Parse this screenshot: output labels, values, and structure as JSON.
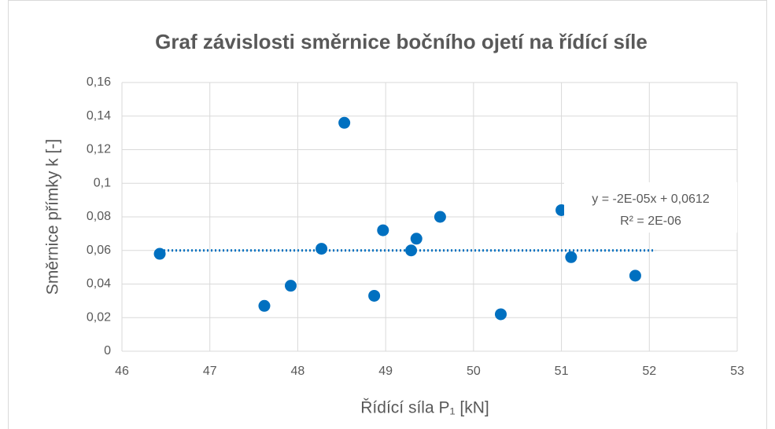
{
  "chart_data": {
    "type": "scatter",
    "title": "Graf závislosti směrnice bočního ojetí na řídící síle",
    "x_label": "Řídící síla P₁ [kN]",
    "y_label": "Směrnice přímky k [-]",
    "series": [
      {
        "color": "#0070c0",
        "x": [
          46.43,
          47.62,
          47.92,
          48.27,
          48.53,
          48.87,
          48.97,
          49.29,
          49.35,
          49.62,
          50.31,
          51.0,
          51.11,
          51.84
        ],
        "values": [
          0.058,
          0.027,
          0.039,
          0.061,
          0.136,
          0.033,
          0.072,
          0.06,
          0.067,
          0.08,
          0.022,
          0.084,
          0.056,
          0.045
        ]
      }
    ],
    "trendline": {
      "color": "#0070c0",
      "x": [
        46.43,
        52.07
      ],
      "values": [
        0.06,
        0.06
      ]
    },
    "annotations": [
      "y = -2E-05x + 0,0612",
      "R² = 2E-06"
    ],
    "xlim": [
      46,
      53
    ],
    "xticks": [
      46,
      47,
      48,
      49,
      50,
      51,
      52,
      53
    ],
    "ylim": [
      0,
      0.16
    ],
    "yticks": [
      0,
      {
        "value": 0.02,
        "label": "0,02"
      },
      {
        "value": 0.04,
        "label": "0,04"
      },
      {
        "value": 0.06,
        "label": "0,06"
      },
      {
        "value": 0.08,
        "label": "0,08"
      },
      {
        "value": 0.1,
        "label": "0,1"
      },
      {
        "value": 0.12,
        "label": "0,12"
      },
      {
        "value": 0.14,
        "label": "0,14"
      },
      {
        "value": 0.16,
        "label": "0,16"
      }
    ],
    "grid": true
  }
}
